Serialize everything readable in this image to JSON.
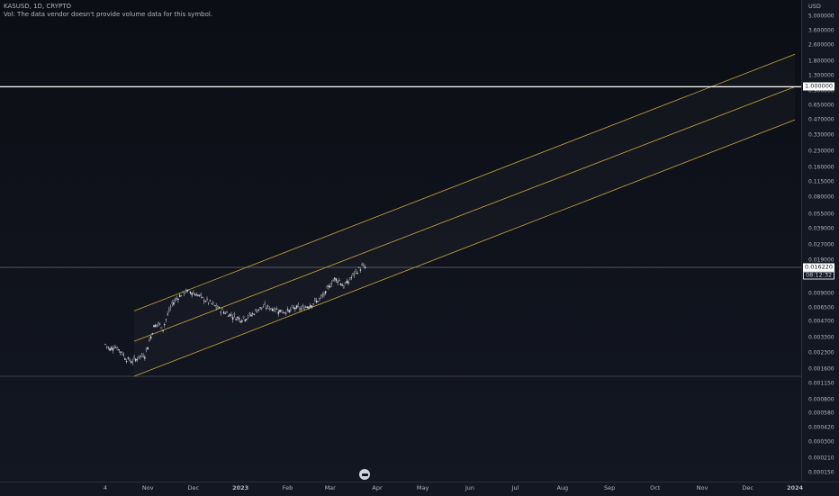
{
  "legend": {
    "symbol_line": "KASUSD, 1D, CRYPTO",
    "volume_note": "Vol: The data vendor doesn't provide volume data for this symbol."
  },
  "axis": {
    "unit": "USD"
  },
  "price_labels": {
    "horizontal_line": "1.000000",
    "last_price": "0.016220",
    "countdown": "08:12:32"
  },
  "colors": {
    "background": "#131722",
    "channel": "#c9a83e",
    "candles": "#d1d4dc",
    "horizontal_line": "#ffffff"
  },
  "chart_data": {
    "type": "candlestick",
    "title": "",
    "symbol": "KASUSD",
    "interval": "1D",
    "exchange": "CRYPTO",
    "y_scale": "log",
    "ylim": [
      0.00015,
      5.0
    ],
    "y_ticks": [
      "5.000000",
      "3.600000",
      "2.600000",
      "1.800000",
      "1.300000",
      "0.900000",
      "0.650000",
      "0.470000",
      "0.330000",
      "0.230000",
      "0.160000",
      "0.115000",
      "0.080000",
      "0.055000",
      "0.039000",
      "0.027000",
      "0.019000",
      "0.013000",
      "0.009000",
      "0.006500",
      "0.004700",
      "0.003300",
      "0.002300",
      "0.001600",
      "0.001150",
      "0.000800",
      "0.000580",
      "0.000420",
      "0.000300",
      "0.000210",
      "0.000150"
    ],
    "x_ticks": [
      "4",
      "Nov",
      "Dec",
      "2023",
      "Feb",
      "Mar",
      "Apr",
      "May",
      "Jun",
      "Jul",
      "Aug",
      "Sep",
      "Oct",
      "Nov",
      "Dec",
      "2024"
    ],
    "x_range": [
      "2022-10-04",
      "2024-01-01"
    ],
    "series": [
      {
        "values": [
          [
            "2022-10-04",
            0.0028
          ],
          [
            "2022-10-07",
            0.0025
          ],
          [
            "2022-10-10",
            0.0027
          ],
          [
            "2022-10-14",
            0.0024
          ],
          [
            "2022-10-18",
            0.002
          ],
          [
            "2022-10-22",
            0.0019
          ],
          [
            "2022-10-26",
            0.0021
          ],
          [
            "2022-10-30",
            0.0022
          ],
          [
            "2022-11-02",
            0.003
          ],
          [
            "2022-11-05",
            0.0042
          ],
          [
            "2022-11-08",
            0.0045
          ],
          [
            "2022-11-11",
            0.004
          ],
          [
            "2022-11-14",
            0.0055
          ],
          [
            "2022-11-17",
            0.007
          ],
          [
            "2022-11-20",
            0.008
          ],
          [
            "2022-11-23",
            0.0087
          ],
          [
            "2022-11-26",
            0.0094
          ],
          [
            "2022-11-30",
            0.0092
          ],
          [
            "2022-12-04",
            0.0086
          ],
          [
            "2022-12-08",
            0.0078
          ],
          [
            "2022-12-12",
            0.0072
          ],
          [
            "2022-12-16",
            0.0066
          ],
          [
            "2022-12-20",
            0.006
          ],
          [
            "2022-12-24",
            0.0056
          ],
          [
            "2022-12-28",
            0.0053
          ],
          [
            "2023-01-01",
            0.005
          ],
          [
            "2023-01-05",
            0.0052
          ],
          [
            "2023-01-09",
            0.0056
          ],
          [
            "2023-01-13",
            0.0063
          ],
          [
            "2023-01-17",
            0.0066
          ],
          [
            "2023-01-21",
            0.0064
          ],
          [
            "2023-01-25",
            0.0062
          ],
          [
            "2023-01-29",
            0.0059
          ],
          [
            "2023-02-02",
            0.006
          ],
          [
            "2023-02-06",
            0.0065
          ],
          [
            "2023-02-10",
            0.0063
          ],
          [
            "2023-02-14",
            0.0067
          ],
          [
            "2023-02-18",
            0.0072
          ],
          [
            "2023-02-22",
            0.0078
          ],
          [
            "2023-02-26",
            0.009
          ],
          [
            "2023-03-01",
            0.011
          ],
          [
            "2023-03-04",
            0.0125
          ],
          [
            "2023-03-07",
            0.012
          ],
          [
            "2023-03-10",
            0.0105
          ],
          [
            "2023-03-13",
            0.0118
          ],
          [
            "2023-03-16",
            0.0135
          ],
          [
            "2023-03-19",
            0.015
          ],
          [
            "2023-03-22",
            0.0165
          ],
          [
            "2023-03-25",
            0.01622
          ]
        ]
      }
    ],
    "drawings": {
      "parallel_channel": {
        "start": "2022-10-23",
        "end": "2024-01-01",
        "upper_start": 0.006,
        "upper_end": 2.1,
        "middle_start": 0.003,
        "middle_end": 1.0,
        "lower_start": 0.00135,
        "lower_end": 0.47
      },
      "horizontal_line": 1.0,
      "last_price_line": 0.01622
    }
  }
}
